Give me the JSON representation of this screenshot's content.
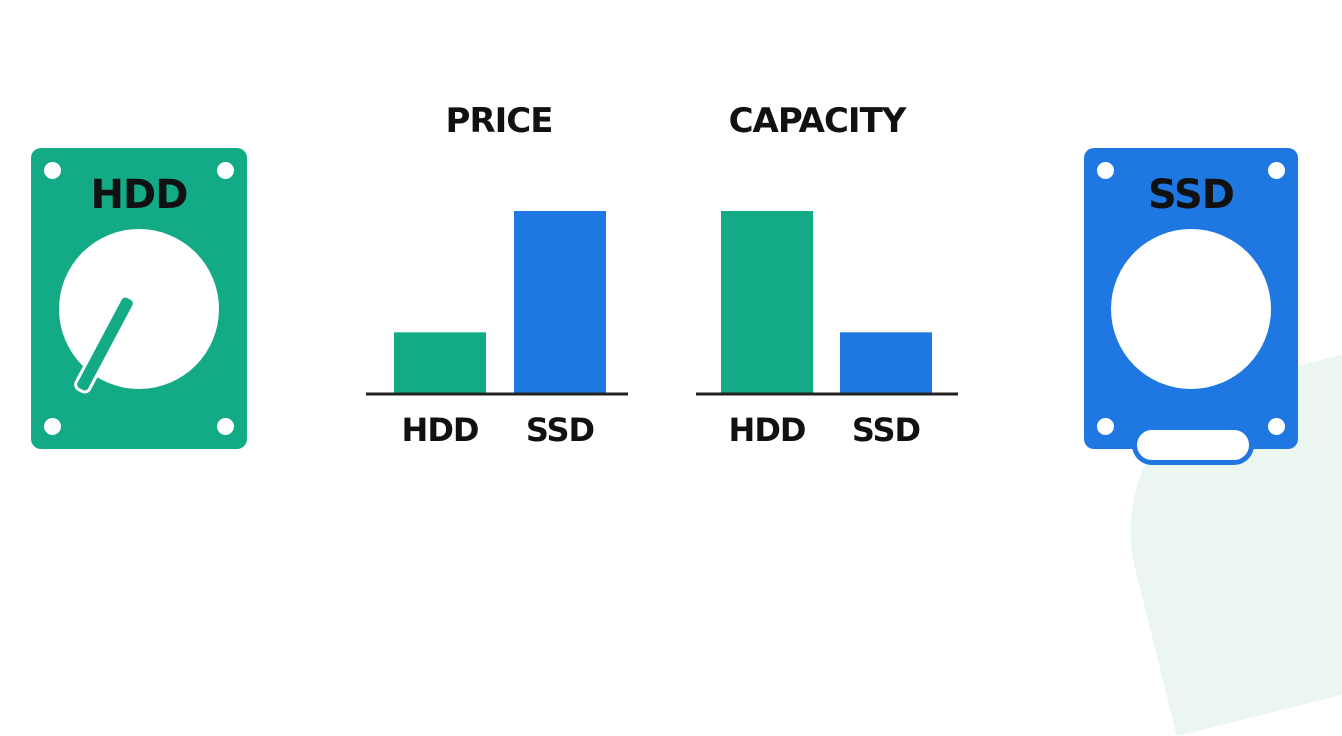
{
  "colors": {
    "hdd": "#13aa86",
    "ssd": "#1f78e2",
    "axis": "#222222",
    "text": "#111111"
  },
  "drives": {
    "hdd_label": "HDD",
    "ssd_label": "SSD"
  },
  "chart_data": [
    {
      "type": "bar",
      "title": "PRICE",
      "categories": [
        "HDD",
        "SSD"
      ],
      "values": [
        1,
        3
      ],
      "ylim": [
        0,
        3
      ],
      "grid": false
    },
    {
      "type": "bar",
      "title": "CAPACITY",
      "categories": [
        "HDD",
        "SSD"
      ],
      "values": [
        3,
        1
      ],
      "ylim": [
        0,
        3
      ],
      "grid": false
    }
  ]
}
